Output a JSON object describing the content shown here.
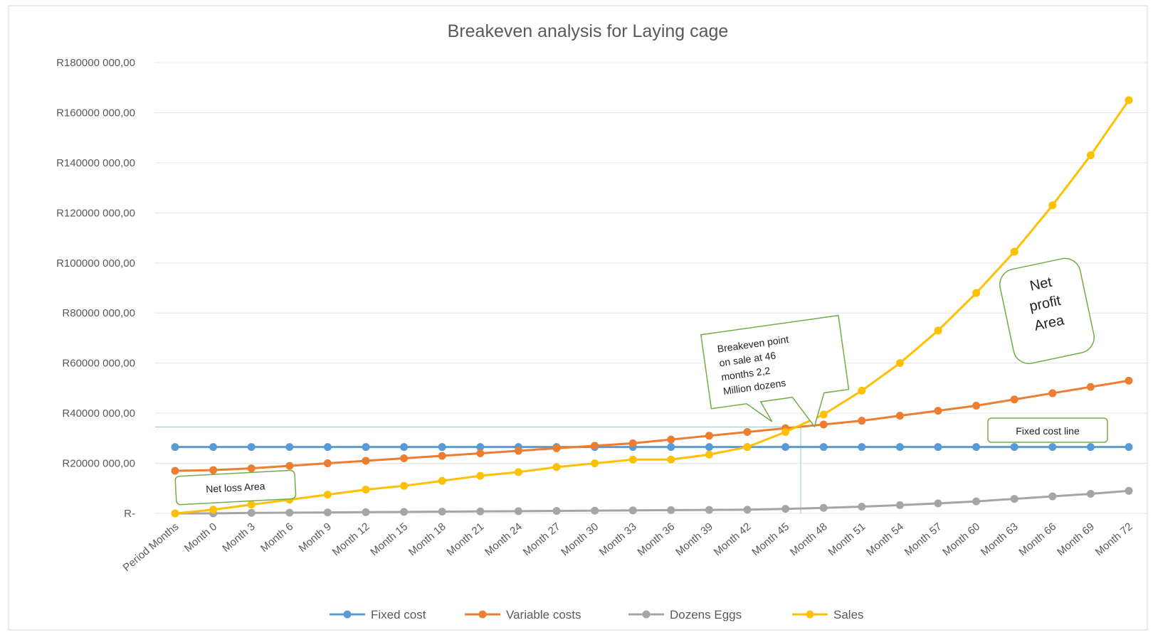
{
  "chart_data": {
    "type": "line",
    "title": "Breakeven analysis for Laying cage",
    "xlabel": "",
    "ylabel": "",
    "categories": [
      "Period Months",
      "Month 0",
      "Month 3",
      "Month 6",
      "Month 9",
      "Month 12",
      "Month 15",
      "Month 18",
      "Month 21",
      "Month 24",
      "Month 27",
      "Month 30",
      "Month 33",
      "Month 36",
      "Month 39",
      "Month 42",
      "Month 45",
      "Month 48",
      "Month 51",
      "Month 54",
      "Month 57",
      "Month 60",
      "Month 63",
      "Month 66",
      "Month 69",
      "Month 72"
    ],
    "ylim": [
      0,
      180000000
    ],
    "yticks": [
      0,
      20000000,
      40000000,
      60000000,
      80000000,
      100000000,
      120000000,
      140000000,
      160000000,
      180000000
    ],
    "ytick_labels": [
      "R-",
      "R20000 000,00",
      "R40000 000,00",
      "R60000 000,00",
      "R80000 000,00",
      "R100000 000,00",
      "R120000 000,00",
      "R140000 000,00",
      "R160000 000,00",
      "R180000 000,00"
    ],
    "grid": true,
    "legend_position": "bottom",
    "series": [
      {
        "name": "Fixed cost",
        "color": "#5b9bd5",
        "values": [
          26500000,
          26500000,
          26500000,
          26500000,
          26500000,
          26500000,
          26500000,
          26500000,
          26500000,
          26500000,
          26500000,
          26500000,
          26500000,
          26500000,
          26500000,
          26500000,
          26500000,
          26500000,
          26500000,
          26500000,
          26500000,
          26500000,
          26500000,
          26500000,
          26500000,
          26500000
        ]
      },
      {
        "name": "Variable costs",
        "color": "#ed7d31",
        "values": [
          17000000,
          17300000,
          18000000,
          19000000,
          20000000,
          21000000,
          22000000,
          23000000,
          24000000,
          25000000,
          26000000,
          27000000,
          28000000,
          29500000,
          31000000,
          32500000,
          34000000,
          35500000,
          37000000,
          39000000,
          41000000,
          43000000,
          45500000,
          48000000,
          50500000,
          53000000
        ]
      },
      {
        "name": "Dozens Eggs",
        "color": "#a5a5a5",
        "values": [
          0,
          0,
          200000,
          300000,
          400000,
          500000,
          600000,
          700000,
          800000,
          900000,
          1000000,
          1100000,
          1200000,
          1300000,
          1400000,
          1500000,
          1800000,
          2200000,
          2700000,
          3300000,
          4000000,
          4800000,
          5800000,
          6800000,
          7800000,
          9000000
        ]
      },
      {
        "name": "Sales",
        "color": "#ffc000",
        "values": [
          0,
          1500000,
          3500000,
          5500000,
          7500000,
          9500000,
          11000000,
          13000000,
          15000000,
          16500000,
          18500000,
          20000000,
          21500000,
          21500000,
          23500000,
          26500000,
          32500000,
          39500000,
          49000000,
          60000000,
          73000000,
          88000000,
          104500000,
          123000000,
          143000000,
          165000000
        ]
      }
    ],
    "annotations": [
      {
        "text": "Net loss Area"
      },
      {
        "text": "Breakeven point on sale at 46 months 2,2 Million dozens",
        "lines": [
          "Breakeven point",
          "on sale at 46",
          "months 2,2",
          "Million dozens"
        ]
      },
      {
        "text": "Net profit Area",
        "lines": [
          "Net",
          "profit",
          "Area"
        ]
      },
      {
        "text": "Fixed cost line"
      }
    ],
    "breakeven": {
      "x_index": 16.4,
      "y": 34500000
    }
  }
}
